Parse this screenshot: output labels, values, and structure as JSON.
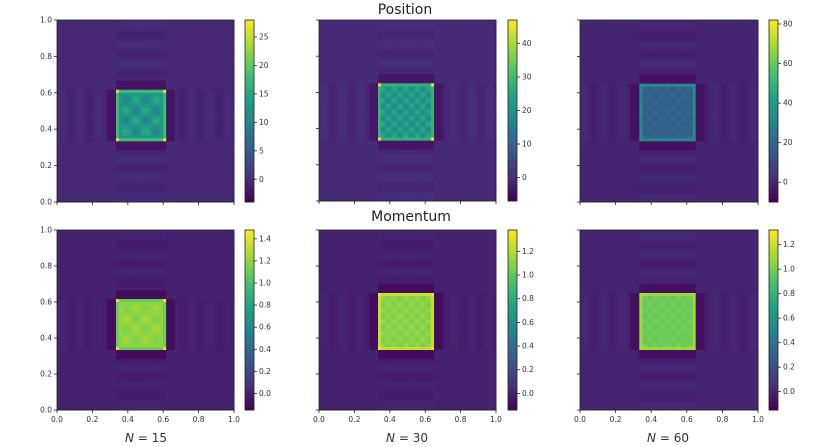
{
  "figure": {
    "row_titles": [
      "Position",
      "Momentum"
    ],
    "column_labels": [
      {
        "var": "N",
        "eq": " = 15"
      },
      {
        "var": "N",
        "eq": " = 30"
      },
      {
        "var": "N",
        "eq": " = 60"
      }
    ]
  },
  "colors": {
    "viridis": [
      "#440154",
      "#46327e",
      "#365c8d",
      "#277f8e",
      "#1fa187",
      "#4ac16d",
      "#a0da39",
      "#fde725"
    ],
    "frame": "#222222"
  },
  "chart_data": [
    {
      "type": "heatmap",
      "row": "Position",
      "N": 15,
      "square": [
        0.33,
        0.62
      ],
      "xlim": [
        0,
        1
      ],
      "ylim": [
        0,
        1
      ],
      "xticks": [
        "0.0",
        "0.2",
        "0.4",
        "0.6",
        "0.8",
        "1.0"
      ],
      "yticks": [
        "0.0",
        "0.2",
        "0.4",
        "0.6",
        "0.8",
        "1.0"
      ],
      "show_xticklabels": false,
      "show_yticklabels": true,
      "colorbar": {
        "range": [
          -4,
          28
        ],
        "ticks": [
          0,
          5,
          10,
          15,
          20,
          25
        ],
        "tick_labels": [
          "0",
          "5",
          "10",
          "15",
          "20",
          "25"
        ]
      },
      "values": {
        "background": -0.4,
        "edge": 18,
        "interior": 10,
        "peak": 27
      }
    },
    {
      "type": "heatmap",
      "row": "Position",
      "N": 30,
      "square": [
        0.33,
        0.65
      ],
      "xlim": [
        0,
        1
      ],
      "ylim": [
        0,
        1
      ],
      "xticks": [
        "0.0",
        "0.2",
        "0.4",
        "0.6",
        "0.8",
        "1.0"
      ],
      "yticks": [
        "0.0",
        "0.2",
        "0.4",
        "0.6",
        "0.8",
        "1.0"
      ],
      "show_xticklabels": false,
      "show_yticklabels": false,
      "colorbar": {
        "range": [
          -7,
          47
        ],
        "ticks": [
          0,
          10,
          20,
          30,
          40
        ],
        "tick_labels": [
          "0",
          "10",
          "20",
          "30",
          "40"
        ]
      },
      "values": {
        "background": -0.5,
        "edge": 28,
        "interior": 17,
        "peak": 46
      }
    },
    {
      "type": "heatmap",
      "row": "Position",
      "N": 60,
      "square": [
        0.33,
        0.65
      ],
      "xlim": [
        0,
        1
      ],
      "ylim": [
        0,
        1
      ],
      "xticks": [
        "0.0",
        "0.2",
        "0.4",
        "0.6",
        "0.8",
        "1.0"
      ],
      "yticks": [
        "0.0",
        "0.2",
        "0.4",
        "0.6",
        "0.8",
        "1.0"
      ],
      "show_xticklabels": false,
      "show_yticklabels": false,
      "colorbar": {
        "range": [
          -10,
          82
        ],
        "ticks": [
          0,
          20,
          40,
          60,
          80
        ],
        "tick_labels": [
          "0",
          "20",
          "40",
          "60",
          "80"
        ]
      },
      "values": {
        "background": -0.5,
        "edge": 34,
        "interior": 15,
        "peak": 36
      }
    },
    {
      "type": "heatmap",
      "row": "Momentum",
      "N": 15,
      "square": [
        0.33,
        0.62
      ],
      "xlim": [
        0,
        1
      ],
      "ylim": [
        0,
        1
      ],
      "xticks": [
        "0.0",
        "0.2",
        "0.4",
        "0.6",
        "0.8",
        "1.0"
      ],
      "yticks": [
        "0.0",
        "0.2",
        "0.4",
        "0.6",
        "0.8",
        "1.0"
      ],
      "show_xticklabels": true,
      "show_yticklabels": true,
      "colorbar": {
        "range": [
          -0.15,
          1.48
        ],
        "ticks": [
          0,
          0.2,
          0.4,
          0.6,
          0.8,
          1.0,
          1.2,
          1.4
        ],
        "tick_labels": [
          "0.0",
          "0.2",
          "0.4",
          "0.6",
          "0.8",
          "1.0",
          "1.2",
          "1.4"
        ]
      },
      "values": {
        "background": 0.0,
        "edge": 1.1,
        "interior": 1.15,
        "peak": 1.45
      }
    },
    {
      "type": "heatmap",
      "row": "Momentum",
      "N": 30,
      "square": [
        0.33,
        0.65
      ],
      "xlim": [
        0,
        1
      ],
      "ylim": [
        0,
        1
      ],
      "xticks": [
        "0.0",
        "0.2",
        "0.4",
        "0.6",
        "0.8",
        "1.0"
      ],
      "yticks": [
        "0.0",
        "0.2",
        "0.4",
        "0.6",
        "0.8",
        "1.0"
      ],
      "show_xticklabels": true,
      "show_yticklabels": false,
      "colorbar": {
        "range": [
          -0.14,
          1.38
        ],
        "ticks": [
          0,
          0.2,
          0.4,
          0.6,
          0.8,
          1.0,
          1.2
        ],
        "tick_labels": [
          "0.0",
          "0.2",
          "0.4",
          "0.6",
          "0.8",
          "1.0",
          "1.2"
        ]
      },
      "values": {
        "background": 0.0,
        "edge": 1.25,
        "interior": 1.05,
        "peak": 1.35
      }
    },
    {
      "type": "heatmap",
      "row": "Momentum",
      "N": 60,
      "square": [
        0.33,
        0.65
      ],
      "xlim": [
        0,
        1
      ],
      "ylim": [
        0,
        1
      ],
      "xticks": [
        "0.0",
        "0.2",
        "0.4",
        "0.6",
        "0.8",
        "1.0"
      ],
      "yticks": [
        "0.0",
        "0.2",
        "0.4",
        "0.6",
        "0.8",
        "1.0"
      ],
      "show_xticklabels": true,
      "show_yticklabels": false,
      "colorbar": {
        "range": [
          -0.15,
          1.32
        ],
        "ticks": [
          0,
          0.2,
          0.4,
          0.6,
          0.8,
          1.0,
          1.2
        ],
        "tick_labels": [
          "0.0",
          "0.2",
          "0.4",
          "0.6",
          "0.8",
          "1.0",
          "1.2"
        ]
      },
      "values": {
        "background": 0.0,
        "edge": 1.1,
        "interior": 0.95,
        "peak": 1.15
      }
    }
  ]
}
